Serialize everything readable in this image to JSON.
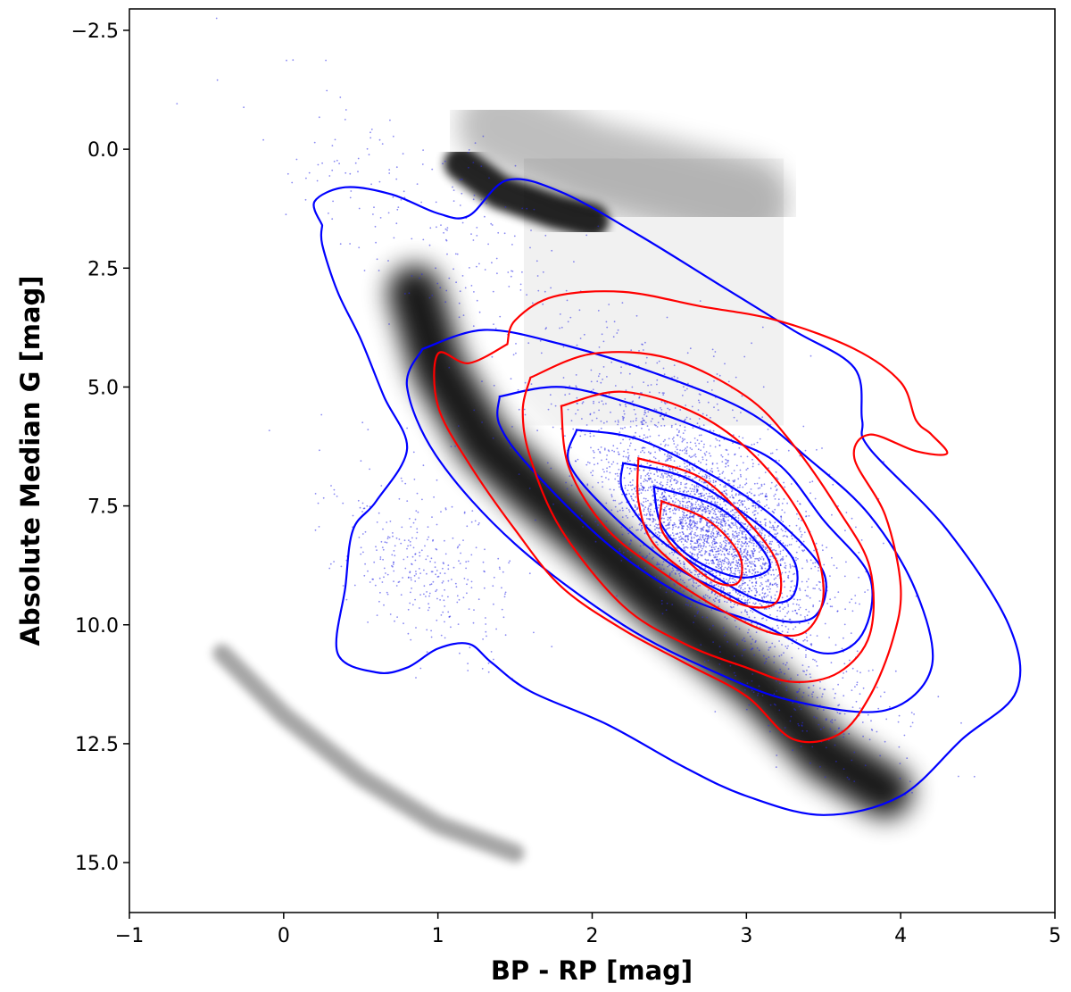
{
  "chart_data": {
    "type": "scatter",
    "title": "",
    "xlabel": "BP - RP [mag]",
    "ylabel": "Absolute Median G [mag]",
    "xlim": [
      -1,
      5
    ],
    "ylim": [
      -2.95,
      16.05
    ],
    "y_inverted": true,
    "grid": false,
    "legend": "none",
    "x_ticks": [
      -1,
      0,
      1,
      2,
      3,
      4,
      5
    ],
    "x_tick_labels": [
      "−1",
      "0",
      "1",
      "2",
      "3",
      "4",
      "5"
    ],
    "y_ticks": [
      -2.5,
      0.0,
      2.5,
      5.0,
      7.5,
      10.0,
      12.5,
      15.0
    ],
    "y_tick_labels": [
      "−2.5",
      "0.0",
      "2.5",
      "5.0",
      "7.5",
      "10.0",
      "12.5",
      "15.0"
    ],
    "colors": {
      "background_density": "#000000",
      "scatter": "#2a2ae8",
      "contour_blue": "#0000ff",
      "contour_red": "#ff0000"
    },
    "background_density": [
      {
        "component": "main-sequence",
        "points": [
          [
            0.85,
            3.0
          ],
          [
            1.0,
            4.6
          ],
          [
            1.3,
            6.2
          ],
          [
            1.6,
            7.1
          ],
          [
            2.0,
            8.2
          ],
          [
            2.4,
            9.4
          ],
          [
            2.8,
            10.5
          ],
          [
            3.1,
            11.3
          ],
          [
            3.3,
            12.0
          ],
          [
            3.5,
            12.7
          ],
          [
            3.9,
            13.5
          ]
        ],
        "width": 0.35,
        "opacity": 0.9
      },
      {
        "component": "red-clump",
        "points": [
          [
            1.15,
            0.3
          ],
          [
            1.4,
            0.9
          ],
          [
            1.75,
            1.3
          ],
          [
            2.0,
            1.5
          ]
        ],
        "width": 0.22,
        "opacity": 0.85
      },
      {
        "component": "giant-branch",
        "points": [
          [
            1.4,
            -0.5
          ],
          [
            1.7,
            -0.1
          ],
          [
            2.0,
            0.3
          ],
          [
            2.5,
            0.7
          ],
          [
            3.0,
            1.1
          ]
        ],
        "width": 0.55,
        "opacity": 0.25
      },
      {
        "component": "white-dwarf-sequence",
        "points": [
          [
            -0.4,
            10.6
          ],
          [
            0.0,
            11.9
          ],
          [
            0.5,
            13.2
          ],
          [
            1.0,
            14.2
          ],
          [
            1.5,
            14.8
          ]
        ],
        "width": 0.12,
        "opacity": 0.35
      },
      {
        "component": "halo",
        "points": [
          [
            1.8,
            1.0
          ],
          [
            2.5,
            3.0
          ],
          [
            3.0,
            5.0
          ]
        ],
        "width": 2.4,
        "opacity": 0.05
      }
    ],
    "scatter_distribution": {
      "color": "#2a2ae8",
      "clusters": [
        {
          "center": [
            2.8,
            8.2
          ],
          "spread": [
            0.55,
            1.4
          ],
          "weight": 0.55
        },
        {
          "center": [
            2.6,
            6.8
          ],
          "spread": [
            0.9,
            2.0
          ],
          "weight": 0.25
        },
        {
          "center": [
            0.9,
            8.8
          ],
          "spread": [
            0.5,
            1.6
          ],
          "weight": 0.08
        },
        {
          "center": [
            3.4,
            11.2
          ],
          "spread": [
            0.6,
            1.4
          ],
          "weight": 0.07
        },
        {
          "center": [
            1.0,
            1.5
          ],
          "spread": [
            1.0,
            1.8
          ],
          "weight": 0.05
        }
      ]
    },
    "contours": {
      "blue": [
        [
          [
            0.25,
            1.6
          ],
          [
            0.2,
            1.1
          ],
          [
            0.4,
            0.8
          ],
          [
            0.7,
            0.95
          ],
          [
            1.0,
            1.35
          ],
          [
            1.2,
            1.4
          ],
          [
            1.45,
            0.65
          ],
          [
            1.8,
            0.9
          ],
          [
            2.3,
            1.8
          ],
          [
            2.8,
            2.8
          ],
          [
            3.3,
            3.8
          ],
          [
            3.7,
            4.6
          ],
          [
            3.75,
            5.7
          ],
          [
            3.8,
            6.3
          ],
          [
            4.3,
            8.0
          ],
          [
            4.7,
            10.0
          ],
          [
            4.75,
            11.4
          ],
          [
            4.4,
            12.4
          ],
          [
            4.0,
            13.6
          ],
          [
            3.5,
            14.0
          ],
          [
            3.0,
            13.6
          ],
          [
            2.6,
            13.0
          ],
          [
            2.1,
            12.1
          ],
          [
            1.6,
            11.4
          ],
          [
            1.35,
            10.8
          ],
          [
            1.2,
            10.4
          ],
          [
            1.0,
            10.5
          ],
          [
            0.8,
            10.9
          ],
          [
            0.6,
            11.0
          ],
          [
            0.35,
            10.6
          ],
          [
            0.4,
            9.2
          ],
          [
            0.45,
            8.0
          ],
          [
            0.6,
            7.4
          ],
          [
            0.8,
            6.3
          ],
          [
            0.65,
            5.2
          ],
          [
            0.5,
            4.0
          ],
          [
            0.35,
            3.0
          ],
          [
            0.25,
            2.0
          ],
          [
            0.25,
            1.6
          ]
        ],
        [
          [
            0.9,
            4.2
          ],
          [
            1.3,
            3.8
          ],
          [
            1.8,
            4.1
          ],
          [
            2.4,
            4.7
          ],
          [
            3.0,
            5.5
          ],
          [
            3.4,
            6.5
          ],
          [
            3.8,
            7.7
          ],
          [
            4.1,
            9.3
          ],
          [
            4.2,
            10.9
          ],
          [
            3.9,
            11.8
          ],
          [
            3.3,
            11.6
          ],
          [
            2.8,
            11.0
          ],
          [
            2.2,
            10.0
          ],
          [
            1.5,
            8.3
          ],
          [
            1.0,
            6.5
          ],
          [
            0.8,
            5.0
          ],
          [
            0.9,
            4.2
          ]
        ],
        [
          [
            1.4,
            5.2
          ],
          [
            1.8,
            5.0
          ],
          [
            2.3,
            5.4
          ],
          [
            2.8,
            6.0
          ],
          [
            3.2,
            6.6
          ],
          [
            3.5,
            7.8
          ],
          [
            3.8,
            9.0
          ],
          [
            3.75,
            10.2
          ],
          [
            3.5,
            10.6
          ],
          [
            3.1,
            10.0
          ],
          [
            2.6,
            9.4
          ],
          [
            2.1,
            8.3
          ],
          [
            1.6,
            6.7
          ],
          [
            1.4,
            5.8
          ],
          [
            1.4,
            5.2
          ]
        ],
        [
          [
            1.9,
            5.9
          ],
          [
            2.3,
            6.1
          ],
          [
            2.8,
            6.9
          ],
          [
            3.2,
            7.8
          ],
          [
            3.5,
            8.9
          ],
          [
            3.45,
            9.8
          ],
          [
            3.2,
            9.9
          ],
          [
            2.9,
            9.4
          ],
          [
            2.5,
            8.7
          ],
          [
            2.1,
            7.6
          ],
          [
            1.85,
            6.6
          ],
          [
            1.9,
            5.9
          ]
        ],
        [
          [
            2.2,
            6.6
          ],
          [
            2.6,
            6.9
          ],
          [
            3.0,
            7.7
          ],
          [
            3.3,
            8.6
          ],
          [
            3.3,
            9.4
          ],
          [
            3.1,
            9.5
          ],
          [
            2.8,
            9.0
          ],
          [
            2.4,
            8.1
          ],
          [
            2.2,
            7.2
          ],
          [
            2.2,
            6.6
          ]
        ],
        [
          [
            2.4,
            7.1
          ],
          [
            2.8,
            7.5
          ],
          [
            3.05,
            8.2
          ],
          [
            3.15,
            8.8
          ],
          [
            2.95,
            9.0
          ],
          [
            2.65,
            8.6
          ],
          [
            2.45,
            7.9
          ],
          [
            2.4,
            7.1
          ]
        ]
      ],
      "red": [
        [
          [
            1.45,
            4.1
          ],
          [
            1.5,
            3.6
          ],
          [
            1.75,
            3.1
          ],
          [
            2.2,
            3.0
          ],
          [
            2.7,
            3.3
          ],
          [
            3.2,
            3.6
          ],
          [
            3.7,
            4.2
          ],
          [
            4.0,
            4.9
          ],
          [
            4.1,
            5.7
          ],
          [
            4.2,
            6.0
          ],
          [
            4.3,
            6.4
          ],
          [
            4.1,
            6.35
          ],
          [
            3.8,
            6.0
          ],
          [
            3.7,
            6.5
          ],
          [
            3.9,
            7.7
          ],
          [
            4.0,
            9.2
          ],
          [
            3.95,
            10.3
          ],
          [
            3.8,
            11.5
          ],
          [
            3.6,
            12.3
          ],
          [
            3.3,
            12.4
          ],
          [
            3.0,
            11.5
          ],
          [
            2.6,
            10.8
          ],
          [
            2.2,
            10.1
          ],
          [
            1.8,
            9.2
          ],
          [
            1.5,
            8.0
          ],
          [
            1.2,
            6.6
          ],
          [
            1.0,
            5.4
          ],
          [
            1.0,
            4.3
          ],
          [
            1.2,
            4.5
          ],
          [
            1.45,
            4.1
          ]
        ],
        [
          [
            1.6,
            4.8
          ],
          [
            2.0,
            4.3
          ],
          [
            2.5,
            4.4
          ],
          [
            3.0,
            5.2
          ],
          [
            3.3,
            6.2
          ],
          [
            3.6,
            7.6
          ],
          [
            3.8,
            8.8
          ],
          [
            3.8,
            10.2
          ],
          [
            3.6,
            11.0
          ],
          [
            3.3,
            11.2
          ],
          [
            3.0,
            10.9
          ],
          [
            2.6,
            10.4
          ],
          [
            2.2,
            9.6
          ],
          [
            1.8,
            8.0
          ],
          [
            1.6,
            6.5
          ],
          [
            1.55,
            5.5
          ],
          [
            1.6,
            4.8
          ]
        ],
        [
          [
            1.8,
            5.4
          ],
          [
            2.2,
            5.1
          ],
          [
            2.7,
            5.6
          ],
          [
            3.1,
            6.6
          ],
          [
            3.4,
            8.0
          ],
          [
            3.5,
            9.3
          ],
          [
            3.4,
            10.1
          ],
          [
            3.2,
            10.2
          ],
          [
            2.9,
            9.8
          ],
          [
            2.5,
            9.0
          ],
          [
            2.1,
            8.0
          ],
          [
            1.85,
            6.7
          ],
          [
            1.8,
            5.4
          ]
        ],
        [
          [
            2.3,
            6.5
          ],
          [
            2.7,
            6.9
          ],
          [
            3.0,
            7.8
          ],
          [
            3.2,
            8.7
          ],
          [
            3.2,
            9.5
          ],
          [
            3.0,
            9.6
          ],
          [
            2.7,
            9.1
          ],
          [
            2.4,
            8.3
          ],
          [
            2.3,
            7.4
          ],
          [
            2.3,
            6.5
          ]
        ],
        [
          [
            2.45,
            7.4
          ],
          [
            2.75,
            7.8
          ],
          [
            2.95,
            8.5
          ],
          [
            2.95,
            9.1
          ],
          [
            2.8,
            9.1
          ],
          [
            2.6,
            8.6
          ],
          [
            2.45,
            8.0
          ],
          [
            2.45,
            7.4
          ]
        ]
      ]
    }
  }
}
